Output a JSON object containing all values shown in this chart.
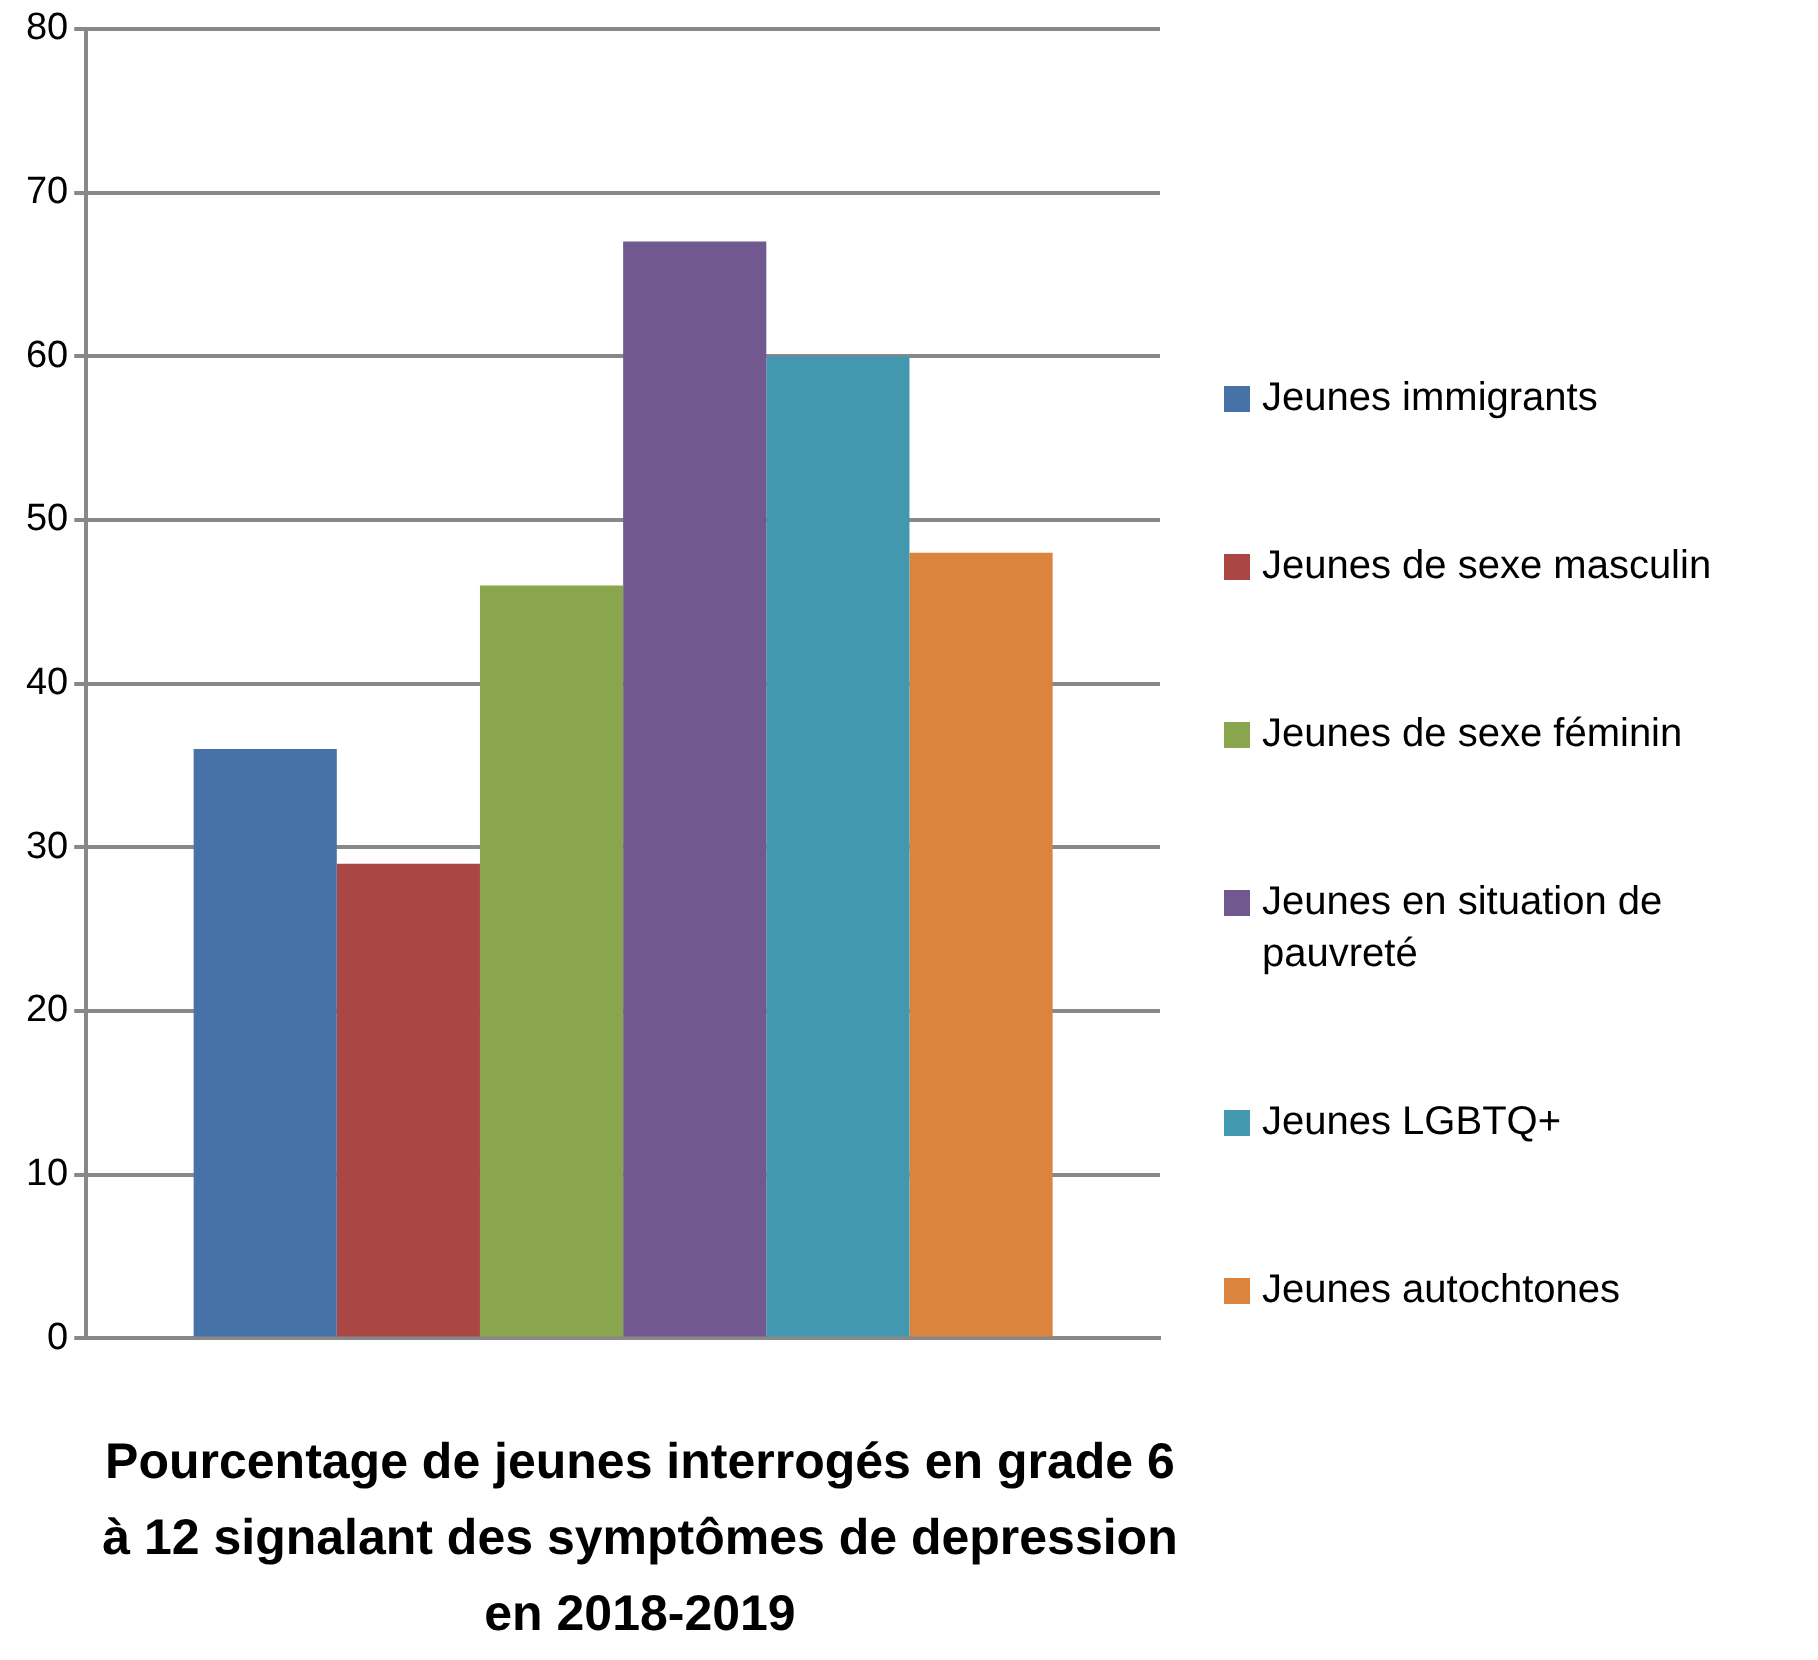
{
  "chart_data": {
    "type": "bar",
    "title": "Pourcentage de jeunes interrogés en grade 6 à 12 signalant des symptômes de depression en 2018-2019",
    "categories": [
      null
    ],
    "series": [
      {
        "name": "Jeunes immigrants",
        "color": "#4672a8",
        "values": [
          36
        ]
      },
      {
        "name": "Jeunes de sexe masculin",
        "color": "#aa4644",
        "values": [
          29
        ]
      },
      {
        "name": "Jeunes de sexe féminin",
        "color": "#89a54e",
        "values": [
          46
        ]
      },
      {
        "name": "Jeunes en situation de pauvreté",
        "color": "#71588f",
        "values": [
          67
        ]
      },
      {
        "name": "Jeunes LGBTQ+",
        "color": "#4298af",
        "values": [
          60
        ]
      },
      {
        "name": "Jeunes autochtones",
        "color": "#db843d",
        "values": [
          48
        ]
      }
    ],
    "ylim": [
      0,
      80
    ],
    "yticks": [
      0,
      10,
      20,
      30,
      40,
      50,
      60,
      70,
      80
    ],
    "grid": "y",
    "legend": "right"
  }
}
